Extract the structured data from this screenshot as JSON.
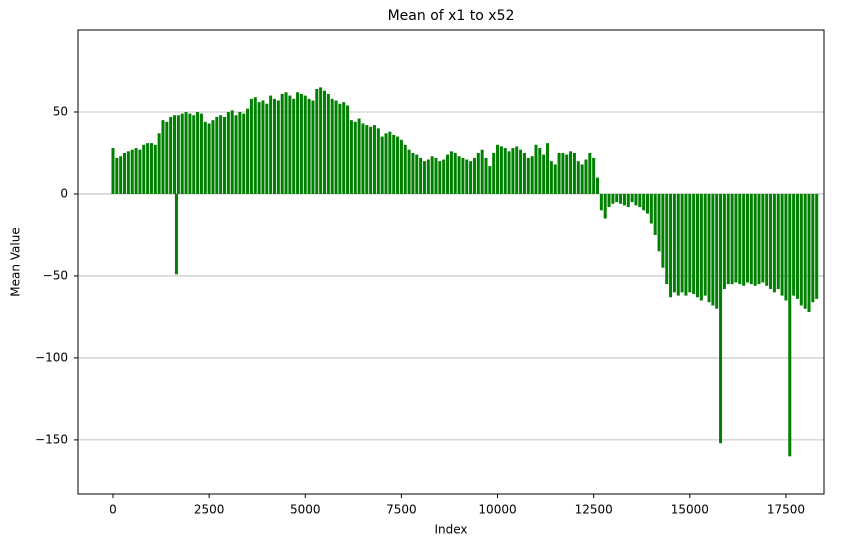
{
  "chart_data": {
    "type": "bar",
    "title": "Mean of x1 to x52",
    "x_label": "Index",
    "y_label": "Mean Value",
    "color": "#008000",
    "grid": "y",
    "xlim": [
      -910,
      18490
    ],
    "ylim": [
      -183,
      100
    ],
    "xticks": [
      0,
      2500,
      5000,
      7500,
      10000,
      12500,
      15000,
      17500
    ],
    "yticks": [
      {
        "value": -150,
        "label": "−150"
      },
      {
        "value": -100,
        "label": "−100"
      },
      {
        "value": -50,
        "label": "−50"
      },
      0,
      50
    ],
    "x": [
      0,
      100,
      200,
      300,
      400,
      500,
      600,
      700,
      800,
      900,
      1000,
      1100,
      1200,
      1300,
      1400,
      1500,
      1600,
      1650,
      1700,
      1800,
      1900,
      2000,
      2100,
      2200,
      2300,
      2400,
      2500,
      2600,
      2700,
      2800,
      2900,
      3000,
      3100,
      3200,
      3300,
      3400,
      3500,
      3600,
      3700,
      3800,
      3900,
      4000,
      4100,
      4200,
      4300,
      4400,
      4500,
      4600,
      4700,
      4800,
      4900,
      5000,
      5100,
      5200,
      5300,
      5400,
      5500,
      5600,
      5700,
      5800,
      5900,
      6000,
      6100,
      6200,
      6300,
      6400,
      6500,
      6600,
      6700,
      6800,
      6900,
      7000,
      7100,
      7200,
      7300,
      7400,
      7500,
      7600,
      7700,
      7800,
      7900,
      8000,
      8100,
      8200,
      8300,
      8400,
      8500,
      8600,
      8700,
      8800,
      8900,
      9000,
      9100,
      9200,
      9300,
      9400,
      9500,
      9600,
      9700,
      9800,
      9900,
      10000,
      10100,
      10200,
      10300,
      10400,
      10500,
      10600,
      10700,
      10800,
      10900,
      11000,
      11100,
      11200,
      11300,
      11400,
      11500,
      11600,
      11700,
      11800,
      11900,
      12000,
      12100,
      12200,
      12300,
      12400,
      12500,
      12600,
      12700,
      12800,
      12900,
      13000,
      13100,
      13200,
      13300,
      13400,
      13500,
      13600,
      13700,
      13800,
      13900,
      14000,
      14100,
      14200,
      14300,
      14400,
      14500,
      14600,
      14700,
      14800,
      14900,
      15000,
      15100,
      15200,
      15300,
      15400,
      15500,
      15600,
      15700,
      15800,
      15900,
      16000,
      16100,
      16200,
      16300,
      16400,
      16500,
      16600,
      16700,
      16800,
      16900,
      17000,
      17100,
      17200,
      17300,
      17400,
      17500,
      17600,
      17700,
      17800,
      17900,
      18000,
      18100,
      18200,
      18300
    ],
    "values": [
      28,
      22,
      23,
      25,
      26,
      27,
      28,
      27,
      30,
      31,
      31,
      30,
      37,
      45,
      44,
      47,
      48,
      -49,
      48,
      49,
      50,
      49,
      48,
      50,
      49,
      44,
      43,
      45,
      47,
      48,
      47,
      50,
      51,
      48,
      50,
      49,
      52,
      58,
      59,
      56,
      57,
      55,
      60,
      58,
      57,
      61,
      62,
      60,
      58,
      62,
      61,
      60,
      58,
      57,
      64,
      65,
      63,
      61,
      58,
      57,
      55,
      56,
      54,
      45,
      44,
      46,
      43,
      42,
      41,
      42,
      40,
      35,
      37,
      38,
      36,
      35,
      33,
      30,
      27,
      25,
      24,
      22,
      20,
      21,
      23,
      22,
      20,
      21,
      24,
      26,
      25,
      23,
      22,
      21,
      20,
      22,
      25,
      27,
      22,
      17,
      25,
      30,
      29,
      28,
      26,
      28,
      29,
      27,
      25,
      22,
      23,
      30,
      28,
      24,
      31,
      20,
      18,
      25,
      25,
      24,
      26,
      25,
      20,
      18,
      21,
      25,
      22,
      10,
      -10,
      -15,
      -8,
      -6,
      -5,
      -6,
      -7,
      -8,
      -5,
      -7,
      -8,
      -10,
      -12,
      -18,
      -25,
      -35,
      -45,
      -55,
      -63,
      -60,
      -62,
      -60,
      -62,
      -60,
      -61,
      -63,
      -65,
      -62,
      -66,
      -68,
      -70,
      -152,
      -58,
      -55,
      -55,
      -54,
      -55,
      -56,
      -54,
      -55,
      -56,
      -55,
      -54,
      -56,
      -58,
      -60,
      -58,
      -62,
      -65,
      -160,
      -62,
      -64,
      -68,
      -70,
      -72,
      -66,
      -64
    ]
  }
}
